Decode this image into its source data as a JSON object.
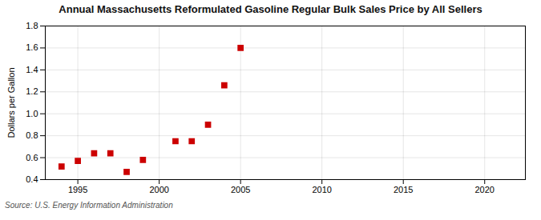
{
  "chart_data": {
    "type": "scatter",
    "title": "Annual Massachusetts Reformulated Gasoline Regular Bulk Sales Price by All Sellers",
    "ylabel": "Dollars per Gallon",
    "source": "Source: U.S. Energy Information Administration",
    "x": [
      1994,
      1995,
      1996,
      1997,
      1998,
      1999,
      2001,
      2002,
      2003,
      2004,
      2005
    ],
    "values": [
      0.52,
      0.57,
      0.64,
      0.64,
      0.47,
      0.58,
      0.75,
      0.75,
      0.9,
      1.26,
      1.6
    ],
    "color": "#cc0000",
    "marker": "square",
    "xlim": [
      1993.0,
      2022.5
    ],
    "xticks": [
      1995,
      2000,
      2005,
      2010,
      2015,
      2020
    ],
    "ylim": [
      0.4,
      1.8
    ],
    "yticks": [
      0.4,
      0.6,
      0.8,
      {
        "value": 1.0,
        "label": "1.0"
      },
      1.2,
      1.4,
      1.6,
      1.8
    ],
    "grid": true
  }
}
